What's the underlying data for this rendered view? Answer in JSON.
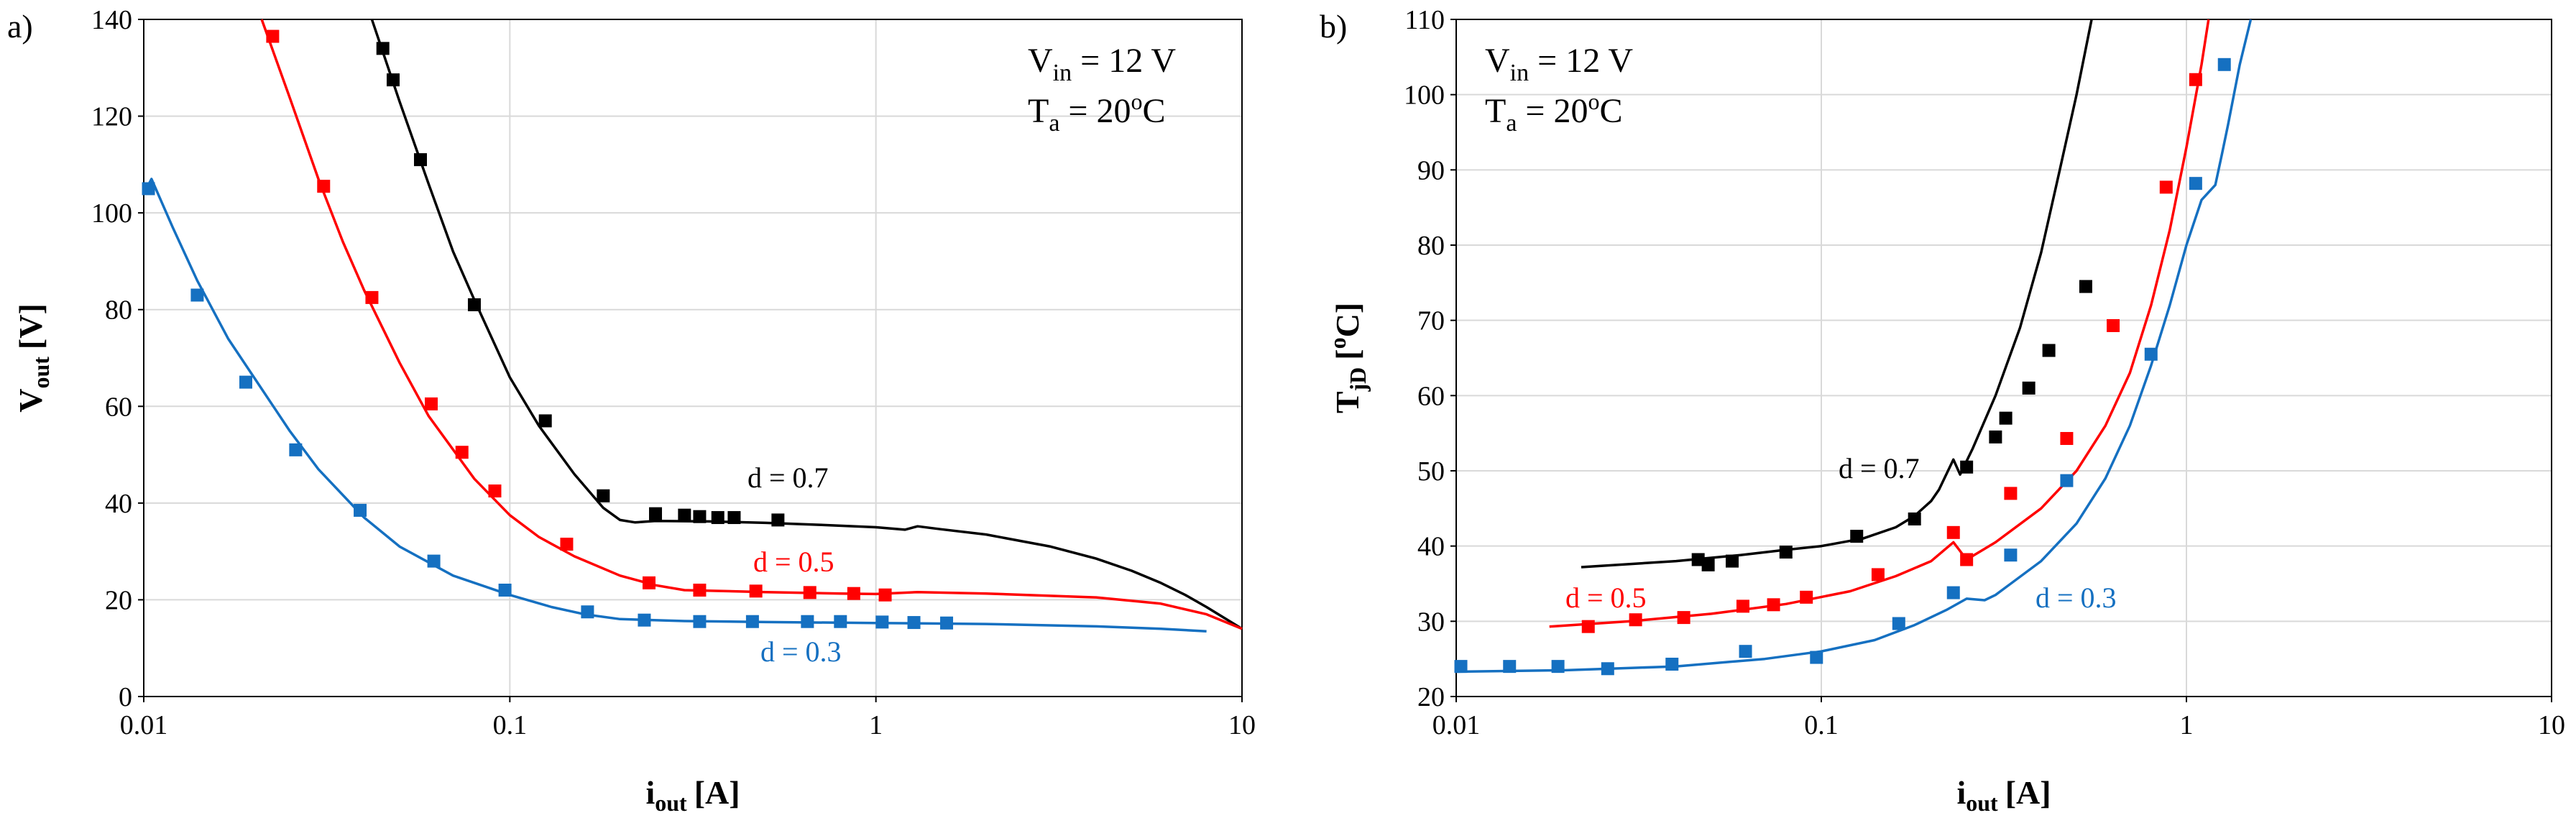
{
  "chart_data": [
    {
      "type": "line",
      "panel_label": "a)",
      "xlabel": {
        "main": "i",
        "sub": "out",
        "unit": "[A]"
      },
      "ylabel": {
        "main": "V",
        "sub": "out",
        "unit": "[V]"
      },
      "x_scale": "log",
      "xlim": [
        0.01,
        10
      ],
      "ylim": [
        0,
        140
      ],
      "x_ticks": [
        0.01,
        0.1,
        1,
        10
      ],
      "x_tick_labels": [
        "0.01",
        "0.1",
        "1",
        "10"
      ],
      "y_ticks": [
        0,
        20,
        40,
        60,
        80,
        100,
        120,
        140
      ],
      "y_tick_labels": [
        "0",
        "20",
        "40",
        "60",
        "80",
        "100",
        "120",
        "140"
      ],
      "annotation": {
        "vin_main": "V",
        "vin_sub": "in",
        "vin_value": " = 12 V",
        "ta_main": "T",
        "ta_sub": "a",
        "ta_value": " = 20",
        "ta_sup": "o",
        "ta_unit": "C"
      },
      "series": [
        {
          "name": "d = 0.7",
          "color": "#000000",
          "model": [
            [
              0.042,
              140
            ],
            [
              0.05,
              123
            ],
            [
              0.06,
              106
            ],
            [
              0.07,
              92
            ],
            [
              0.08,
              82
            ],
            [
              0.1,
              66
            ],
            [
              0.12,
              56
            ],
            [
              0.15,
              46
            ],
            [
              0.18,
              39
            ],
            [
              0.2,
              36.5
            ],
            [
              0.22,
              36
            ],
            [
              0.25,
              36.3
            ],
            [
              0.35,
              36.2
            ],
            [
              0.5,
              35.9
            ],
            [
              0.7,
              35.5
            ],
            [
              1.0,
              35
            ],
            [
              1.2,
              34.5
            ],
            [
              1.3,
              35.2
            ],
            [
              1.5,
              34.6
            ],
            [
              2,
              33.5
            ],
            [
              3,
              31
            ],
            [
              4,
              28.5
            ],
            [
              5,
              26
            ],
            [
              6,
              23.5
            ],
            [
              7,
              21
            ],
            [
              8,
              18.5
            ],
            [
              10,
              14
            ]
          ],
          "measured": [
            [
              0.045,
              134
            ],
            [
              0.048,
              127.5
            ],
            [
              0.057,
              111
            ],
            [
              0.08,
              81
            ],
            [
              0.125,
              57
            ],
            [
              0.18,
              41.5
            ],
            [
              0.25,
              37.8
            ],
            [
              0.3,
              37.5
            ],
            [
              0.33,
              37.2
            ],
            [
              0.37,
              37
            ],
            [
              0.41,
              37
            ],
            [
              0.54,
              36.5
            ]
          ]
        },
        {
          "name": "d = 0.5",
          "color": "#ff0000",
          "model": [
            [
              0.021,
              140
            ],
            [
              0.025,
              124
            ],
            [
              0.03,
              107
            ],
            [
              0.035,
              94
            ],
            [
              0.04,
              84
            ],
            [
              0.05,
              69
            ],
            [
              0.06,
              58
            ],
            [
              0.08,
              45
            ],
            [
              0.1,
              37.5
            ],
            [
              0.12,
              33
            ],
            [
              0.15,
              29
            ],
            [
              0.2,
              25
            ],
            [
              0.25,
              23
            ],
            [
              0.3,
              22
            ],
            [
              0.5,
              21.6
            ],
            [
              0.8,
              21.3
            ],
            [
              1,
              21.2
            ],
            [
              1.3,
              21.6
            ],
            [
              2,
              21.3
            ],
            [
              4,
              20.5
            ],
            [
              6,
              19.2
            ],
            [
              8,
              17
            ],
            [
              10,
              14
            ]
          ],
          "measured": [
            [
              0.0225,
              136.5
            ],
            [
              0.031,
              105.5
            ],
            [
              0.042,
              82.5
            ],
            [
              0.061,
              60.5
            ],
            [
              0.074,
              50.5
            ],
            [
              0.091,
              42.5
            ],
            [
              0.143,
              31.5
            ],
            [
              0.24,
              23.5
            ],
            [
              0.33,
              22
            ],
            [
              0.47,
              21.8
            ],
            [
              0.66,
              21.5
            ],
            [
              0.87,
              21.3
            ],
            [
              1.06,
              21
            ]
          ]
        },
        {
          "name": "d = 0.3",
          "color": "#1570c1",
          "model": [
            [
              0.01,
              104
            ],
            [
              0.0105,
              107
            ],
            [
              0.012,
              97
            ],
            [
              0.014,
              86
            ],
            [
              0.017,
              74
            ],
            [
              0.02,
              66
            ],
            [
              0.025,
              55
            ],
            [
              0.03,
              47
            ],
            [
              0.04,
              37
            ],
            [
              0.05,
              31
            ],
            [
              0.07,
              25
            ],
            [
              0.1,
              21
            ],
            [
              0.13,
              18.5
            ],
            [
              0.16,
              17
            ],
            [
              0.2,
              16
            ],
            [
              0.3,
              15.6
            ],
            [
              0.5,
              15.4
            ],
            [
              1,
              15.2
            ],
            [
              2,
              15
            ],
            [
              4,
              14.5
            ],
            [
              6,
              14
            ],
            [
              8,
              13.5
            ]
          ],
          "measured": [
            [
              0.0103,
              105
            ],
            [
              0.014,
              83
            ],
            [
              0.019,
              65
            ],
            [
              0.026,
              51
            ],
            [
              0.039,
              38.5
            ],
            [
              0.062,
              28
            ],
            [
              0.097,
              22
            ],
            [
              0.163,
              17.5
            ],
            [
              0.233,
              15.8
            ],
            [
              0.33,
              15.5
            ],
            [
              0.46,
              15.5
            ],
            [
              0.65,
              15.5
            ],
            [
              0.8,
              15.5
            ],
            [
              1.04,
              15.4
            ],
            [
              1.27,
              15.3
            ],
            [
              1.56,
              15.2
            ]
          ]
        }
      ]
    },
    {
      "type": "line",
      "panel_label": "b)",
      "xlabel": {
        "main": "i",
        "sub": "out",
        "unit": "[A]"
      },
      "ylabel": {
        "main": "T",
        "sub": "jD",
        "unit_pre": "[",
        "unit_sup": "o",
        "unit_post": "C]"
      },
      "x_scale": "log",
      "xlim": [
        0.01,
        10
      ],
      "ylim": [
        20,
        110
      ],
      "x_ticks": [
        0.01,
        0.1,
        1,
        10
      ],
      "x_tick_labels": [
        "0.01",
        "0.1",
        "1",
        "10"
      ],
      "y_ticks": [
        20,
        30,
        40,
        50,
        60,
        70,
        80,
        90,
        100,
        110
      ],
      "y_tick_labels": [
        "20",
        "30",
        "40",
        "50",
        "60",
        "70",
        "80",
        "90",
        "100",
        "110"
      ],
      "annotation": {
        "vin_main": "V",
        "vin_sub": "in",
        "vin_value": " = 12 V",
        "ta_main": "T",
        "ta_sub": "a",
        "ta_value": " = 20",
        "ta_sup": "o",
        "ta_unit": "C"
      },
      "series": [
        {
          "name": "d = 0.7",
          "color": "#000000",
          "model": [
            [
              0.022,
              37.2
            ],
            [
              0.04,
              38
            ],
            [
              0.06,
              38.8
            ],
            [
              0.08,
              39.5
            ],
            [
              0.1,
              40
            ],
            [
              0.13,
              41
            ],
            [
              0.16,
              42.5
            ],
            [
              0.18,
              44
            ],
            [
              0.2,
              46
            ],
            [
              0.21,
              47.5
            ],
            [
              0.23,
              51.5
            ],
            [
              0.24,
              49.5
            ],
            [
              0.26,
              53
            ],
            [
              0.3,
              60
            ],
            [
              0.35,
              69
            ],
            [
              0.4,
              79
            ],
            [
              0.45,
              90
            ],
            [
              0.5,
              100
            ],
            [
              0.55,
              110
            ]
          ],
          "measured": [
            [
              0.046,
              38.2
            ],
            [
              0.049,
              37.5
            ],
            [
              0.057,
              38
            ],
            [
              0.08,
              39.2
            ],
            [
              0.125,
              41.3
            ],
            [
              0.18,
              43.6
            ],
            [
              0.25,
              50.5
            ],
            [
              0.3,
              54.5
            ],
            [
              0.32,
              57
            ],
            [
              0.37,
              61
            ],
            [
              0.42,
              66
            ],
            [
              0.53,
              74.5
            ]
          ]
        },
        {
          "name": "d = 0.5",
          "color": "#ff0000",
          "model": [
            [
              0.018,
              29.3
            ],
            [
              0.03,
              30
            ],
            [
              0.05,
              31
            ],
            [
              0.08,
              32.3
            ],
            [
              0.12,
              34
            ],
            [
              0.16,
              36
            ],
            [
              0.2,
              38
            ],
            [
              0.23,
              40.5
            ],
            [
              0.25,
              38.2
            ],
            [
              0.3,
              40.5
            ],
            [
              0.4,
              45
            ],
            [
              0.5,
              50
            ],
            [
              0.6,
              56
            ],
            [
              0.7,
              63
            ],
            [
              0.8,
              72
            ],
            [
              0.9,
              82
            ],
            [
              1.0,
              93
            ],
            [
              1.1,
              104
            ],
            [
              1.15,
              110
            ]
          ],
          "measured": [
            [
              0.023,
              29.3
            ],
            [
              0.031,
              30.2
            ],
            [
              0.042,
              30.5
            ],
            [
              0.061,
              32
            ],
            [
              0.074,
              32.2
            ],
            [
              0.091,
              33.2
            ],
            [
              0.143,
              36.2
            ],
            [
              0.23,
              41.8
            ],
            [
              0.25,
              38.2
            ],
            [
              0.33,
              47
            ],
            [
              0.47,
              54.3
            ],
            [
              0.63,
              69.3
            ],
            [
              0.88,
              87.7
            ],
            [
              1.06,
              102
            ]
          ]
        },
        {
          "name": "d = 0.3",
          "color": "#1570c1",
          "model": [
            [
              0.01,
              23.3
            ],
            [
              0.02,
              23.5
            ],
            [
              0.04,
              24
            ],
            [
              0.07,
              25
            ],
            [
              0.1,
              26
            ],
            [
              0.14,
              27.5
            ],
            [
              0.18,
              29.5
            ],
            [
              0.22,
              31.5
            ],
            [
              0.25,
              33
            ],
            [
              0.28,
              32.8
            ],
            [
              0.3,
              33.5
            ],
            [
              0.4,
              38
            ],
            [
              0.5,
              43
            ],
            [
              0.6,
              49
            ],
            [
              0.7,
              56
            ],
            [
              0.8,
              64
            ],
            [
              0.9,
              72
            ],
            [
              1.0,
              80
            ],
            [
              1.1,
              86
            ],
            [
              1.2,
              88
            ],
            [
              1.25,
              92
            ],
            [
              1.3,
              96
            ],
            [
              1.4,
              104
            ],
            [
              1.5,
              110
            ]
          ],
          "measured": [
            [
              0.0103,
              24
            ],
            [
              0.014,
              24
            ],
            [
              0.019,
              24
            ],
            [
              0.026,
              23.7
            ],
            [
              0.039,
              24.3
            ],
            [
              0.062,
              26
            ],
            [
              0.097,
              25.2
            ],
            [
              0.163,
              29.7
            ],
            [
              0.23,
              33.8
            ],
            [
              0.33,
              38.8
            ],
            [
              0.47,
              48.7
            ],
            [
              0.8,
              65.5
            ],
            [
              1.06,
              88.2
            ],
            [
              1.27,
              104
            ]
          ]
        }
      ]
    }
  ]
}
